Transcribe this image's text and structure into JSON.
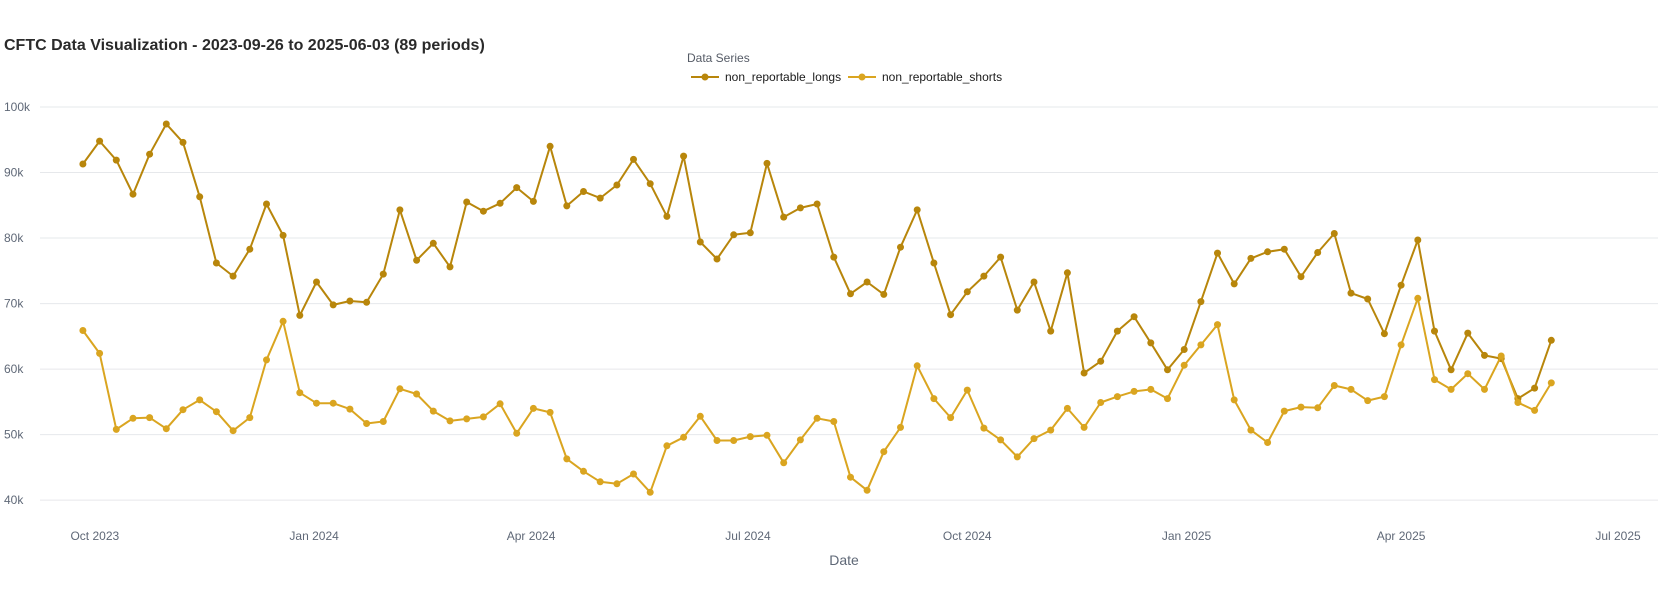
{
  "chart_data": {
    "type": "line",
    "title": "CFTC Data Visualization - 2023-09-26 to 2025-06-03 (89 periods)",
    "xlabel": "Date",
    "ylabel": "",
    "legend_title": "Data Series",
    "legend_position": "top-center",
    "grid": true,
    "x_start": "2023-09-26",
    "x_step_days": 7,
    "xlim": [
      "2023-09-08",
      "2025-07-01"
    ],
    "ylim": [
      38500,
      100000
    ],
    "x_ticks": [
      {
        "date": "2023-10-01",
        "label": "Oct 2023"
      },
      {
        "date": "2024-01-01",
        "label": "Jan 2024"
      },
      {
        "date": "2024-04-01",
        "label": "Apr 2024"
      },
      {
        "date": "2024-07-01",
        "label": "Jul 2024"
      },
      {
        "date": "2024-10-01",
        "label": "Oct 2024"
      },
      {
        "date": "2025-01-01",
        "label": "Jan 2025"
      },
      {
        "date": "2025-04-01",
        "label": "Apr 2025"
      },
      {
        "date": "2025-07-01",
        "label": "Jul 2025"
      }
    ],
    "y_ticks": [
      {
        "value": 40000,
        "label": "40k"
      },
      {
        "value": 50000,
        "label": "50k"
      },
      {
        "value": 60000,
        "label": "60k"
      },
      {
        "value": 70000,
        "label": "70k"
      },
      {
        "value": 80000,
        "label": "80k"
      },
      {
        "value": 90000,
        "label": "90k"
      },
      {
        "value": 100000,
        "label": "100k"
      }
    ],
    "series": [
      {
        "name": "non_reportable_longs",
        "color": "#b8860b",
        "values": [
          91300,
          94800,
          91900,
          86700,
          92800,
          97400,
          94600,
          86300,
          76200,
          74200,
          78300,
          85200,
          80400,
          68200,
          73300,
          69800,
          70400,
          70200,
          74500,
          84300,
          76600,
          79200,
          75600,
          85500,
          84100,
          85300,
          87700,
          85600,
          94000,
          84900,
          87100,
          86100,
          88100,
          92000,
          88300,
          83300,
          92500,
          79400,
          76800,
          80500,
          80800,
          91400,
          83200,
          84600,
          85200,
          77100,
          71500,
          73300,
          71400,
          78600,
          84300,
          76200,
          68300,
          71800,
          74200,
          77100,
          69000,
          73300,
          65800,
          74700,
          59400,
          61200,
          65800,
          68000,
          64000,
          59900,
          63000,
          70300,
          77700,
          73000,
          76900,
          77900,
          78300,
          74100,
          77800,
          80700,
          71600,
          70700,
          65400,
          72800,
          79700,
          65800,
          59900,
          65500,
          62100,
          61600,
          55500,
          57100,
          64400
        ]
      },
      {
        "name": "non_reportable_shorts",
        "color": "#daa520",
        "values": [
          65900,
          62400,
          50800,
          52500,
          52600,
          50900,
          53800,
          55300,
          53500,
          50600,
          52600,
          61400,
          67300,
          56400,
          54800,
          54800,
          53900,
          51700,
          52000,
          57000,
          56200,
          53600,
          52100,
          52400,
          52700,
          54700,
          50200,
          54000,
          53400,
          46300,
          44400,
          42800,
          42500,
          44000,
          41200,
          48300,
          49600,
          52800,
          49100,
          49100,
          49700,
          49900,
          45700,
          49200,
          52500,
          52000,
          43500,
          41500,
          47400,
          51100,
          60500,
          55500,
          52600,
          56800,
          51000,
          49200,
          46600,
          49400,
          50700,
          54000,
          51100,
          54900,
          55800,
          56600,
          56900,
          55500,
          60600,
          63700,
          66800,
          55300,
          50700,
          48800,
          53600,
          54200,
          54100,
          57500,
          56900,
          55200,
          55800,
          63700,
          70800,
          58400,
          56900,
          59300,
          56900,
          62000,
          54900,
          53700,
          57900
        ]
      }
    ]
  }
}
